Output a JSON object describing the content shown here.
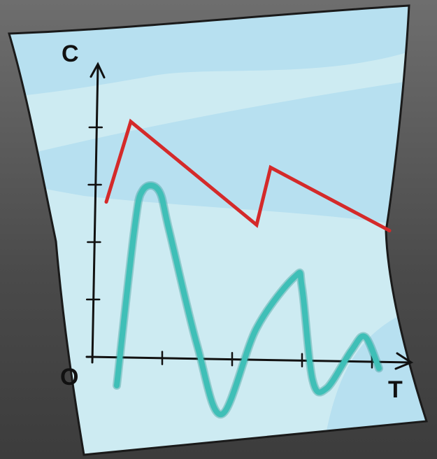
{
  "chart_data": {
    "type": "line",
    "title": "",
    "xlabel": "T",
    "ylabel": "C",
    "origin_label": "O",
    "xlim": [
      0,
      4.5
    ],
    "ylim": [
      0,
      5.2
    ],
    "x_ticks": [
      1,
      2,
      3,
      4
    ],
    "y_ticks": [
      1,
      2,
      3,
      4
    ],
    "grid": false,
    "legend": "none",
    "series": [
      {
        "color": "#d42a2a",
        "style": "polyline",
        "points": [
          [
            0.2,
            2.7
          ],
          [
            0.55,
            4.1
          ],
          [
            2.35,
            2.3
          ],
          [
            2.55,
            3.3
          ],
          [
            4.25,
            2.2
          ]
        ]
      },
      {
        "color": "#3fbfb7",
        "style": "smooth",
        "points": [
          [
            0.35,
            -0.5
          ],
          [
            0.6,
            2.2
          ],
          [
            0.72,
            2.9
          ],
          [
            0.95,
            2.9
          ],
          [
            1.1,
            2.2
          ],
          [
            1.5,
            0.2
          ],
          [
            1.85,
            -1.0
          ],
          [
            2.35,
            0.5
          ],
          [
            2.9,
            1.4
          ],
          [
            3.0,
            1.2
          ],
          [
            3.15,
            -0.4
          ],
          [
            3.35,
            -0.55
          ],
          [
            3.7,
            0.1
          ],
          [
            3.9,
            0.35
          ],
          [
            4.1,
            -0.2
          ]
        ]
      }
    ]
  },
  "colors": {
    "paper_light": "#cdebf2",
    "paper_band": "#b7e0f0",
    "paper_outline": "#1a1a1a",
    "axis": "#111111"
  }
}
